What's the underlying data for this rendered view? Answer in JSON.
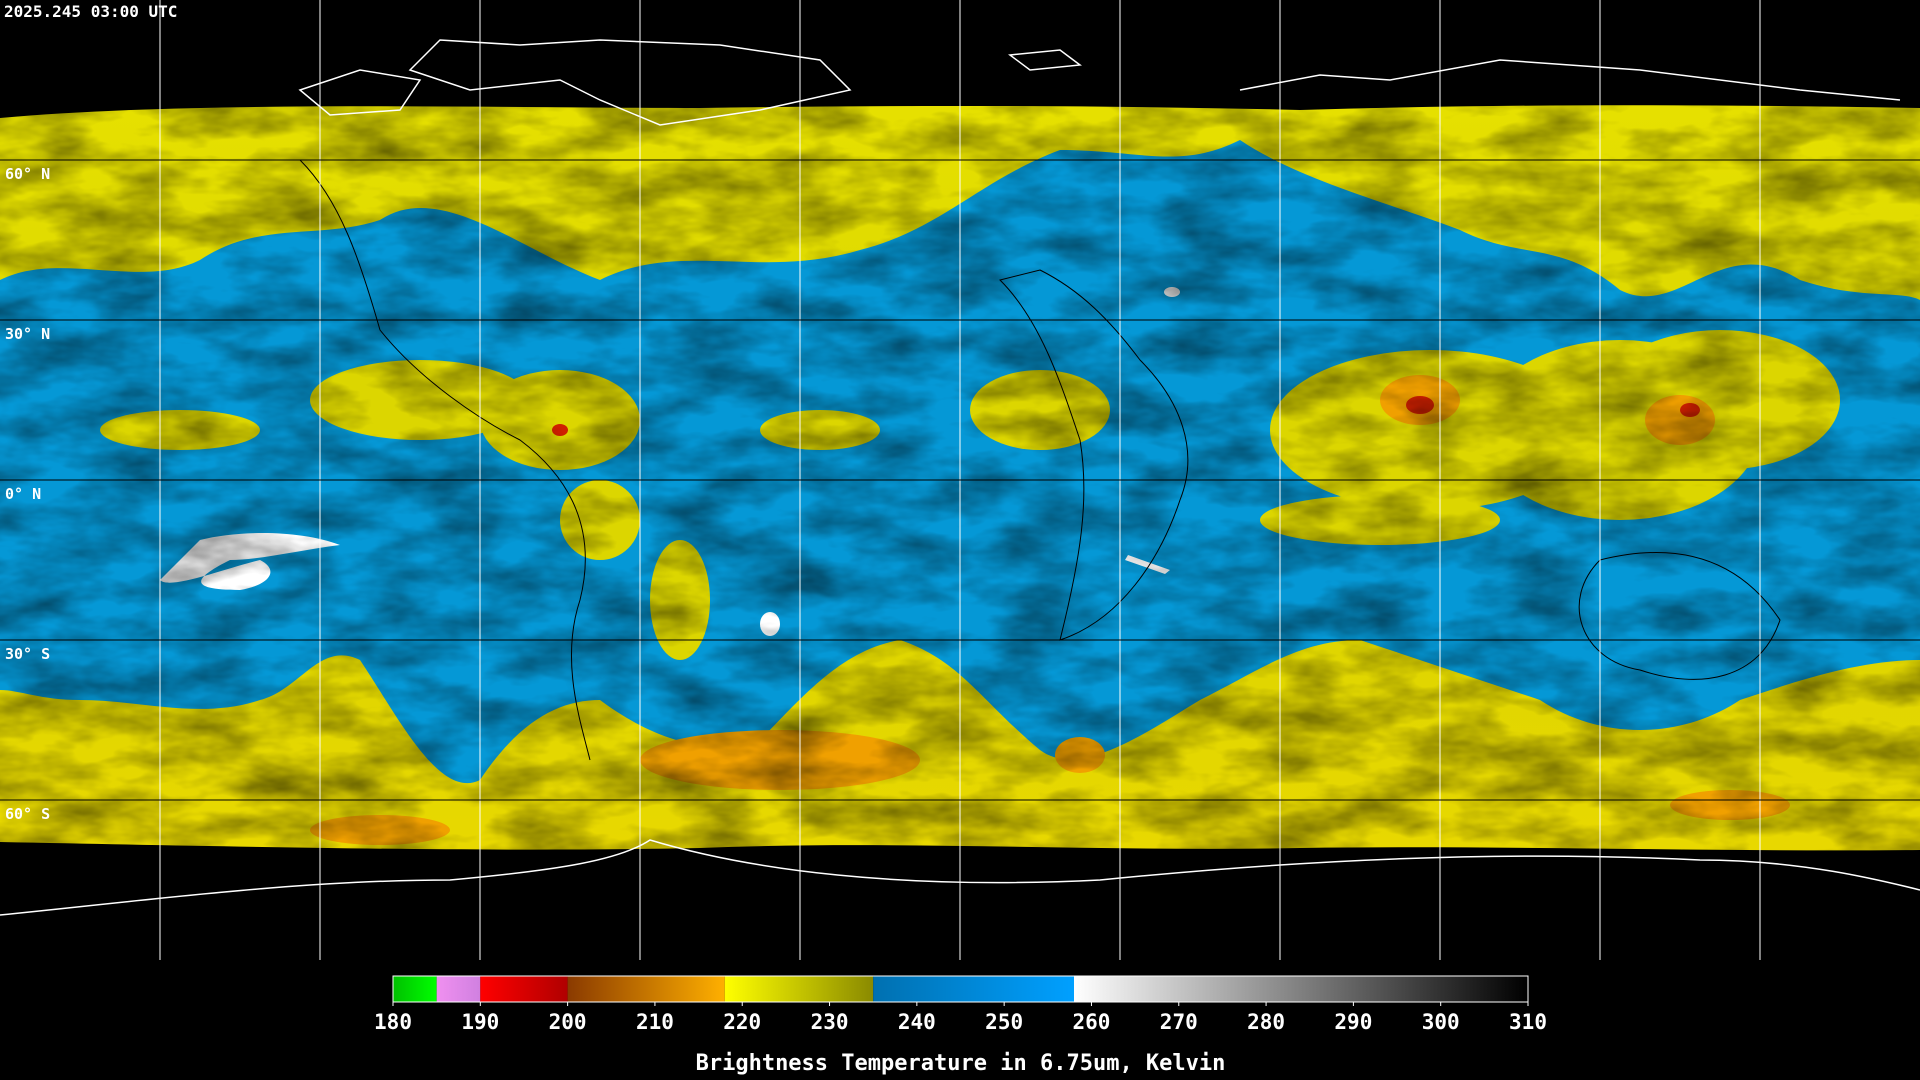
{
  "header": {
    "timestamp": "2025.245 03:00 UTC"
  },
  "map": {
    "latitudes": [
      {
        "value": 60,
        "label": "60° N"
      },
      {
        "value": 30,
        "label": "30° N"
      },
      {
        "value": 0,
        "label": "0° N"
      },
      {
        "value": -30,
        "label": "30° S"
      },
      {
        "value": -60,
        "label": "60° S"
      }
    ]
  },
  "colorbar": {
    "range": [
      180,
      310
    ],
    "ticks": [
      180,
      190,
      200,
      210,
      220,
      230,
      240,
      250,
      260,
      270,
      280,
      290,
      300,
      310
    ],
    "label": "Brightness Temperature in 6.75um, Kelvin",
    "segments": [
      {
        "range": [
          180,
          185
        ],
        "colors": [
          "#00c000",
          "#00ff00"
        ]
      },
      {
        "range": [
          185,
          190
        ],
        "colors": [
          "#f090f0",
          "#d080e0"
        ]
      },
      {
        "range": [
          190,
          200
        ],
        "colors": [
          "#ff0000",
          "#b00000"
        ]
      },
      {
        "range": [
          200,
          218
        ],
        "colors": [
          "#8a3a00",
          "#ffb000"
        ]
      },
      {
        "range": [
          218,
          235
        ],
        "colors": [
          "#ffff00",
          "#8a8a00"
        ]
      },
      {
        "range": [
          235,
          258
        ],
        "colors": [
          "#0070b0",
          "#00a0ff"
        ]
      },
      {
        "range": [
          258,
          310
        ],
        "colors": [
          "#ffffff",
          "#000000"
        ]
      }
    ]
  }
}
